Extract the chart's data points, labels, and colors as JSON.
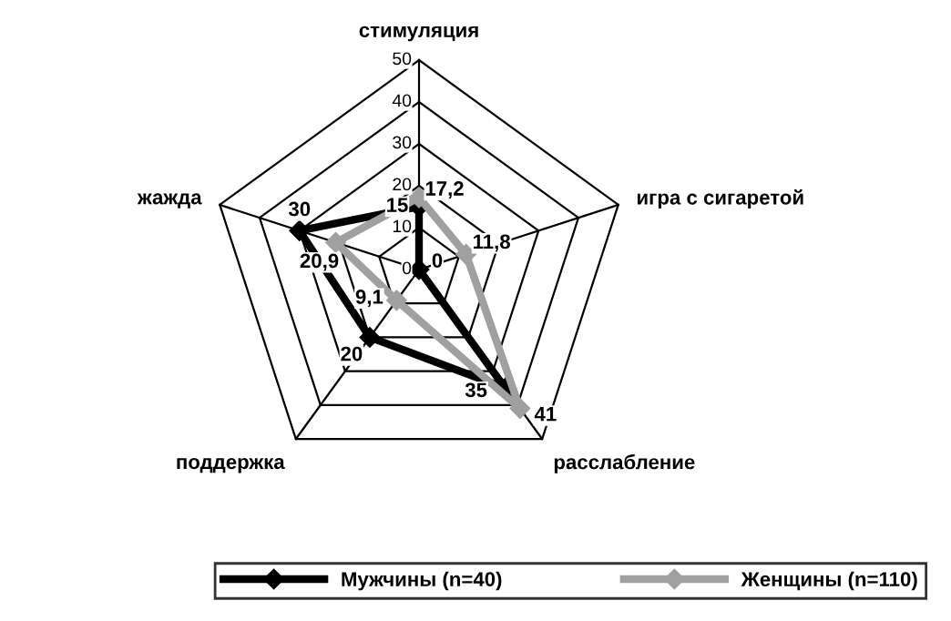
{
  "chart_data": {
    "type": "radar",
    "categories": [
      "стимуляция",
      "игра с сигаретой",
      "расслабление",
      "поддержка",
      "жажда"
    ],
    "ylim": [
      0,
      50
    ],
    "yticks": [
      0,
      10,
      20,
      30,
      40,
      50
    ],
    "series": [
      {
        "name": "Мужчины (n=40)",
        "color": "#000000",
        "values": [
          15,
          0,
          35,
          20,
          30
        ],
        "value_labels": [
          "15",
          "0",
          "35",
          "20",
          "30"
        ]
      },
      {
        "name": "Женщины (n=110)",
        "color": "#a0a0a0",
        "values": [
          17.2,
          11.8,
          41,
          9.1,
          20.9
        ],
        "value_labels": [
          "17,2",
          "11,8",
          "41",
          "9,1",
          "20,9"
        ]
      }
    ],
    "marker": "diamond",
    "grid": true,
    "legend": "bottom"
  }
}
